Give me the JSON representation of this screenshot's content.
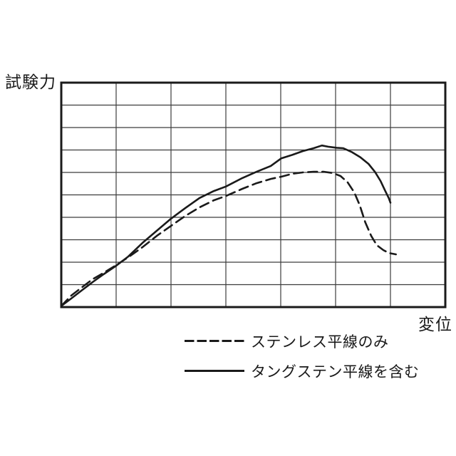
{
  "colors": {
    "ink": "#1a1a1a",
    "grid": "#3c3c3c",
    "background": "#ffffff"
  },
  "labels": {
    "y_axis": "試験力",
    "x_axis": "変位"
  },
  "chart_data": {
    "type": "line",
    "title": "",
    "xlabel": "変位",
    "ylabel": "試験力",
    "x_range": [
      0,
      7
    ],
    "y_range": [
      0,
      10
    ],
    "x_tick_labels": [],
    "y_tick_labels": [],
    "grid": {
      "columns": 7,
      "rows": 10,
      "shown": true,
      "boxed": true
    },
    "legend_position": "below-chart",
    "note": "Axes are unlabeled numerically; point values are in grid units (x: 0-7 columns, y: 0-10 rows from origin at bottom-left).",
    "series": [
      {
        "id": "stainless",
        "name": "ステンレス平線のみ",
        "line_style": "dashed",
        "points": [
          [
            0,
            0.05
          ],
          [
            0.18,
            0.51
          ],
          [
            0.38,
            0.89
          ],
          [
            0.57,
            1.24
          ],
          [
            0.77,
            1.52
          ],
          [
            1.0,
            1.87
          ],
          [
            1.22,
            2.22
          ],
          [
            1.48,
            2.67
          ],
          [
            1.74,
            3.17
          ],
          [
            2.0,
            3.62
          ],
          [
            2.26,
            4.06
          ],
          [
            2.52,
            4.44
          ],
          [
            2.78,
            4.76
          ],
          [
            3.0,
            4.95
          ],
          [
            3.3,
            5.27
          ],
          [
            3.56,
            5.52
          ],
          [
            3.82,
            5.71
          ],
          [
            4.01,
            5.81
          ],
          [
            4.21,
            5.94
          ],
          [
            4.4,
            6.0
          ],
          [
            4.6,
            6.03
          ],
          [
            4.79,
            6.03
          ],
          [
            4.95,
            5.97
          ],
          [
            5.09,
            5.84
          ],
          [
            5.22,
            5.56
          ],
          [
            5.34,
            5.11
          ],
          [
            5.44,
            4.54
          ],
          [
            5.54,
            3.78
          ],
          [
            5.65,
            3.17
          ],
          [
            5.75,
            2.76
          ],
          [
            5.87,
            2.54
          ],
          [
            5.97,
            2.41
          ],
          [
            6.1,
            2.35
          ]
        ]
      },
      {
        "id": "tungsten",
        "name": "タングステン平線を含む",
        "line_style": "solid",
        "points": [
          [
            0,
            0.05
          ],
          [
            0.18,
            0.38
          ],
          [
            0.38,
            0.76
          ],
          [
            0.57,
            1.11
          ],
          [
            0.77,
            1.46
          ],
          [
            1.0,
            1.84
          ],
          [
            1.22,
            2.25
          ],
          [
            1.48,
            2.86
          ],
          [
            1.74,
            3.4
          ],
          [
            2.0,
            3.94
          ],
          [
            2.26,
            4.41
          ],
          [
            2.52,
            4.86
          ],
          [
            2.78,
            5.17
          ],
          [
            3.0,
            5.37
          ],
          [
            3.3,
            5.75
          ],
          [
            3.56,
            6.03
          ],
          [
            3.82,
            6.29
          ],
          [
            4.01,
            6.63
          ],
          [
            4.21,
            6.78
          ],
          [
            4.4,
            6.95
          ],
          [
            4.6,
            7.08
          ],
          [
            4.75,
            7.2
          ],
          [
            4.88,
            7.14
          ],
          [
            5.02,
            7.1
          ],
          [
            5.14,
            7.08
          ],
          [
            5.3,
            6.9
          ],
          [
            5.45,
            6.68
          ],
          [
            5.6,
            6.38
          ],
          [
            5.72,
            6.02
          ],
          [
            5.82,
            5.62
          ],
          [
            5.9,
            5.2
          ],
          [
            5.97,
            4.85
          ],
          [
            6.0,
            4.65
          ]
        ]
      }
    ]
  }
}
